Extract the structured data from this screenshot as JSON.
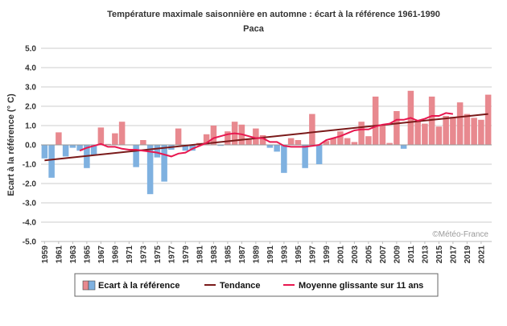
{
  "chart_data": {
    "type": "bar",
    "title": "Température maximale saisonnière en automne : écart à la référence 1961-1990",
    "subtitle": "Paca",
    "ylabel": "Ecart à la référence (° C)",
    "ylim": [
      -5,
      5
    ],
    "yticks": [
      "5.0",
      "4.0",
      "3.0",
      "2.0",
      "1.0",
      "0.0",
      "-1.0",
      "-2.0",
      "-3.0",
      "-4.0",
      "-5.0"
    ],
    "xtick_labels": [
      "1959",
      "1961",
      "1963",
      "1965",
      "1967",
      "1969",
      "1971",
      "1973",
      "1975",
      "1977",
      "1979",
      "1981",
      "1983",
      "1985",
      "1987",
      "1989",
      "1991",
      "1993",
      "1995",
      "1997",
      "1999",
      "2001",
      "2003",
      "2005",
      "2007",
      "2009",
      "2011",
      "2013",
      "2015",
      "2017",
      "2019",
      "2021"
    ],
    "x": [
      1959,
      1960,
      1961,
      1962,
      1963,
      1964,
      1965,
      1966,
      1967,
      1968,
      1969,
      1970,
      1971,
      1972,
      1973,
      1974,
      1975,
      1976,
      1977,
      1978,
      1979,
      1980,
      1981,
      1982,
      1983,
      1984,
      1985,
      1986,
      1987,
      1988,
      1989,
      1990,
      1991,
      1992,
      1993,
      1994,
      1995,
      1996,
      1997,
      1998,
      1999,
      2000,
      2001,
      2002,
      2003,
      2004,
      2005,
      2006,
      2007,
      2008,
      2009,
      2010,
      2011,
      2012,
      2013,
      2014,
      2015,
      2016,
      2017,
      2018,
      2019,
      2020,
      2021,
      2022
    ],
    "series": [
      {
        "name": "Ecart à la référence",
        "kind": "bar",
        "positive_color": "#e8898f",
        "negative_color": "#7fb1e0",
        "values": [
          -0.7,
          -1.7,
          0.65,
          -0.6,
          -0.15,
          -0.3,
          -1.2,
          -0.55,
          0.9,
          0.05,
          0.6,
          1.2,
          0.0,
          -1.15,
          0.25,
          -2.55,
          -0.65,
          -1.9,
          -0.25,
          0.85,
          -0.3,
          -0.3,
          0.1,
          0.55,
          1.0,
          -0.05,
          0.7,
          1.2,
          1.05,
          0.3,
          0.85,
          0.5,
          -0.15,
          -0.35,
          -1.45,
          0.35,
          0.25,
          -1.2,
          1.6,
          -1.0,
          0.2,
          0.35,
          0.7,
          0.35,
          0.15,
          1.2,
          0.45,
          2.5,
          1.0,
          0.1,
          1.75,
          -0.2,
          2.8,
          1.2,
          1.1,
          2.5,
          0.95,
          1.5,
          1.45,
          2.2,
          1.6,
          1.4,
          1.3,
          2.6
        ]
      },
      {
        "name": "Tendance",
        "kind": "line",
        "color": "#7a1a1a",
        "x": [
          1959,
          2022
        ],
        "values": [
          -0.8,
          1.6
        ]
      },
      {
        "name": "Moyenne glissante sur 11 ans",
        "kind": "line",
        "color": "#e8174f",
        "x": [
          1964,
          1965,
          1966,
          1967,
          1968,
          1969,
          1970,
          1971,
          1972,
          1973,
          1974,
          1975,
          1976,
          1977,
          1978,
          1979,
          1980,
          1981,
          1982,
          1983,
          1984,
          1985,
          1986,
          1987,
          1988,
          1989,
          1990,
          1991,
          1992,
          1993,
          1994,
          1995,
          1996,
          1997,
          1998,
          1999,
          2000,
          2001,
          2002,
          2003,
          2004,
          2005,
          2006,
          2007,
          2008,
          2009,
          2010,
          2011,
          2012,
          2013,
          2014,
          2015,
          2016,
          2017
        ],
        "values": [
          -0.3,
          -0.15,
          -0.05,
          0.05,
          -0.1,
          -0.1,
          -0.2,
          -0.25,
          -0.25,
          -0.3,
          -0.35,
          -0.4,
          -0.5,
          -0.6,
          -0.45,
          -0.4,
          -0.2,
          -0.05,
          0.1,
          0.35,
          0.45,
          0.55,
          0.6,
          0.55,
          0.45,
          0.35,
          0.35,
          0.15,
          0.15,
          -0.05,
          -0.1,
          -0.1,
          -0.1,
          -0.05,
          0.0,
          0.25,
          0.35,
          0.45,
          0.6,
          0.75,
          0.8,
          0.8,
          0.95,
          1.05,
          1.1,
          1.3,
          1.3,
          1.4,
          1.25,
          1.35,
          1.5,
          1.5,
          1.65,
          1.6
        ]
      }
    ],
    "legend": {
      "position": "bottom",
      "items": [
        {
          "label": "Ecart à la référence"
        },
        {
          "label": "Tendance"
        },
        {
          "label": "Moyenne glissante sur 11 ans"
        }
      ]
    },
    "credit": "©Météo-France",
    "colors": {
      "grid": "#cccccc",
      "zero_line": "#999999",
      "text": "#333333"
    }
  }
}
